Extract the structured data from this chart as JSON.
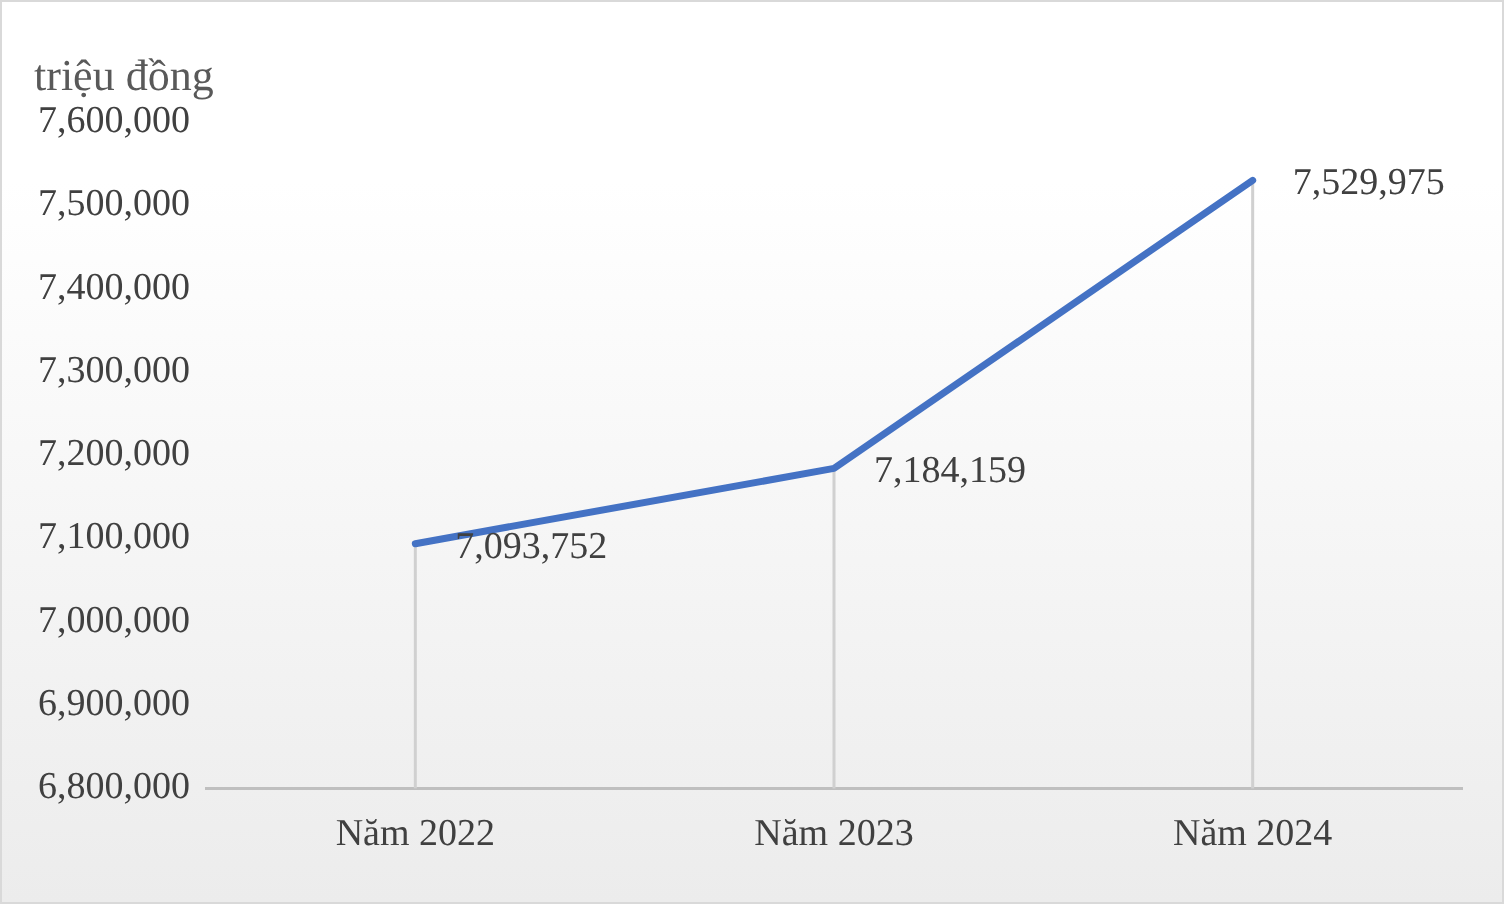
{
  "chart_data": {
    "type": "line",
    "ylabel": "triệu đồng",
    "categories": [
      "Năm 2022",
      "Năm 2023",
      "Năm 2024"
    ],
    "series": [
      {
        "color": "#4472c4",
        "values": [
          7093752,
          7184159,
          7529975
        ],
        "value_labels": [
          "7,093,752",
          "7,184,159",
          "7,529,975"
        ]
      }
    ],
    "ylim": [
      6800000,
      7600000
    ],
    "yticks": [
      {
        "value": 6800000,
        "label": "6,800,000"
      },
      {
        "value": 6900000,
        "label": "6,900,000"
      },
      {
        "value": 7000000,
        "label": "7,000,000"
      },
      {
        "value": 7100000,
        "label": "7,100,000"
      },
      {
        "value": 7200000,
        "label": "7,200,000"
      },
      {
        "value": 7300000,
        "label": "7,300,000"
      },
      {
        "value": 7400000,
        "label": "7,400,000"
      },
      {
        "value": 7500000,
        "label": "7,500,000"
      },
      {
        "value": 7600000,
        "label": "7,600,000"
      }
    ],
    "grid": "x",
    "legend": false,
    "marker": "none",
    "line_style": "solid"
  }
}
